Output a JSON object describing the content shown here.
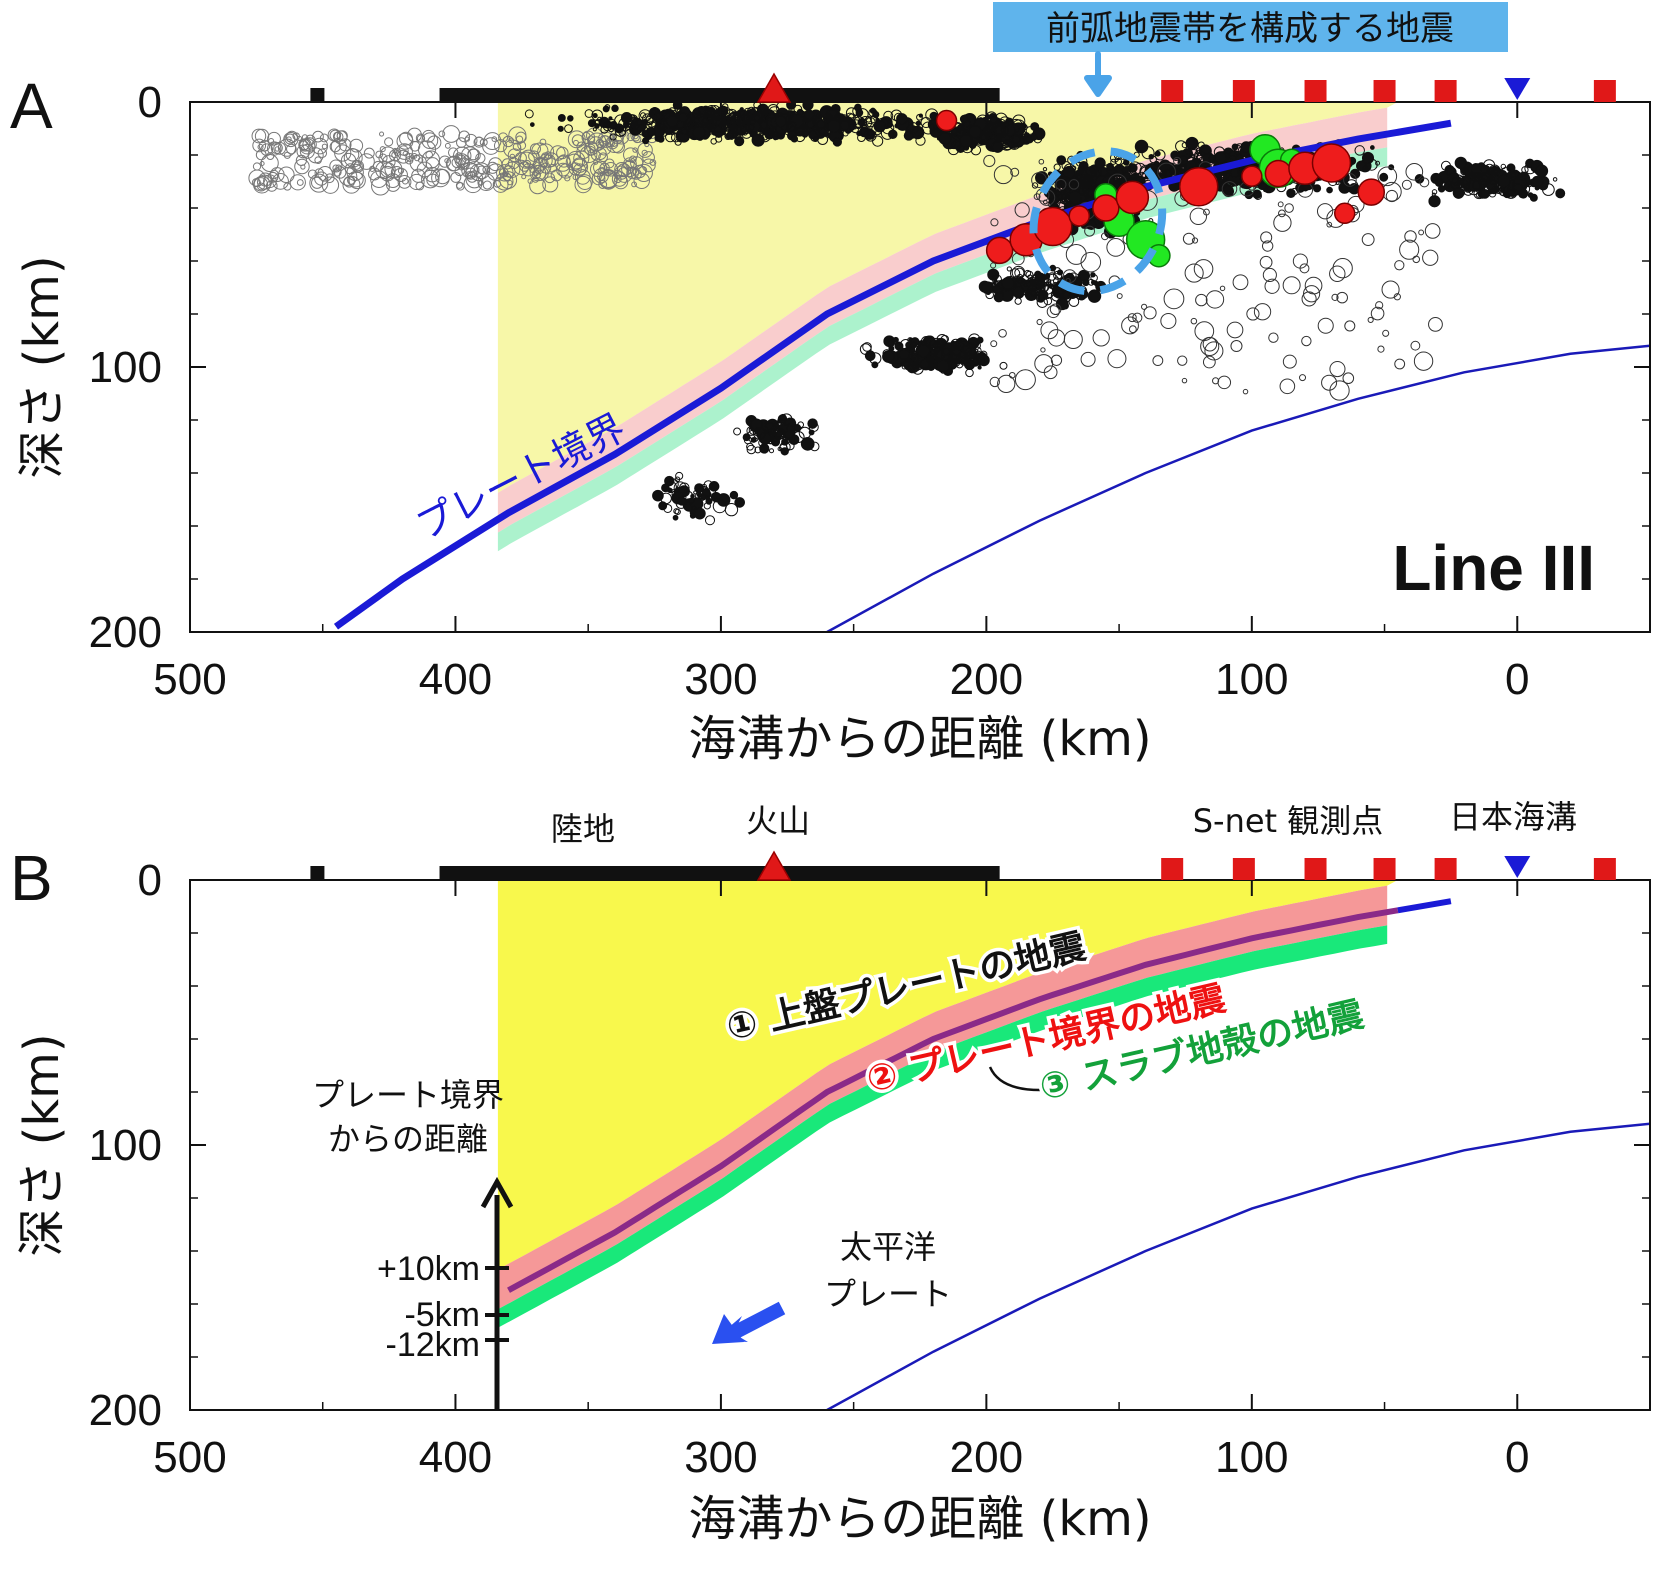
{
  "chart_data": [
    {
      "panel_label": "A",
      "type": "scatter",
      "title": "",
      "inset_label": "Line III",
      "xlabel": "海溝からの距離 (km)",
      "ylabel": "深さ (km)",
      "xlim": [
        500,
        -50
      ],
      "ylim": [
        200,
        0
      ],
      "xticks": [
        500,
        400,
        300,
        200,
        100,
        0
      ],
      "yticks": [
        0,
        100,
        200
      ],
      "callout": {
        "text": "前弧地震帯を構成する地震",
        "target_x": 158,
        "target_depth": 45
      },
      "plate_boundary_label": "プレート境界",
      "plate_boundary": {
        "x": [
          445,
          420,
          380,
          340,
          300,
          260,
          220,
          180,
          140,
          100,
          60,
          25
        ],
        "depth": [
          198,
          180,
          155,
          133,
          108,
          80,
          60,
          45,
          32,
          22,
          14,
          8
        ]
      },
      "slab_lower_line": {
        "x": [
          260,
          220,
          180,
          140,
          100,
          60,
          20,
          -20,
          -50
        ],
        "depth": [
          200,
          178,
          158,
          140,
          124,
          112,
          102,
          95,
          92
        ]
      },
      "red_events": {
        "x": [
          215,
          195,
          185,
          175,
          165,
          155,
          145,
          120,
          100,
          90,
          80,
          70,
          65,
          55
        ],
        "depth": [
          7,
          56,
          52,
          47,
          43,
          40,
          36,
          32,
          28,
          27,
          25,
          23,
          42,
          34
        ]
      },
      "green_events": {
        "x": [
          155,
          150,
          140,
          135,
          95,
          90,
          85
        ],
        "depth": [
          35,
          45,
          52,
          58,
          18,
          25,
          22
        ]
      },
      "stations": {
        "land_segment": [
          406,
          195
        ],
        "land_marker": 452,
        "volcano": 280,
        "snet": [
          130,
          103,
          76,
          50,
          27,
          -33
        ],
        "trench": 0
      }
    },
    {
      "panel_label": "B",
      "type": "diagram",
      "title": "",
      "xlabel": "海溝からの距離 (km)",
      "ylabel": "深さ (km)",
      "xlim": [
        500,
        -50
      ],
      "ylim": [
        200,
        0
      ],
      "xticks": [
        500,
        400,
        300,
        200,
        100,
        0
      ],
      "yticks": [
        0,
        100,
        200
      ],
      "top_labels": {
        "land": "陸地",
        "volcano": "火山",
        "snet": "S-net 観測点",
        "trench": "日本海溝"
      },
      "zones": {
        "upper_plate": "① 上盤プレートの地震",
        "plate_boundary": "② プレート境界の地震",
        "slab_crust": "③ スラブ地殻の地震"
      },
      "distance_axis": {
        "title_line1": "プレート境界",
        "title_line2": "からの距離",
        "ticks": [
          "+10km",
          "-5km",
          "-12km"
        ]
      },
      "pacific_label_line1": "太平洋",
      "pacific_label_line2": "プレート",
      "plate_boundary": {
        "x": [
          384,
          340,
          300,
          260,
          220,
          180,
          140,
          100,
          60,
          25
        ],
        "depth": [
          157,
          133,
          108,
          80,
          60,
          45,
          32,
          22,
          14,
          8
        ]
      },
      "slab_lower_line": {
        "x": [
          260,
          220,
          180,
          140,
          100,
          60,
          20,
          -20,
          -50
        ],
        "depth": [
          200,
          178,
          158,
          140,
          124,
          112,
          102,
          95,
          92
        ]
      },
      "stations": {
        "land_segment": [
          406,
          195
        ],
        "land_marker": 452,
        "volcano": 280,
        "snet": [
          130,
          103,
          76,
          50,
          27,
          -33
        ],
        "trench": 0
      }
    }
  ]
}
